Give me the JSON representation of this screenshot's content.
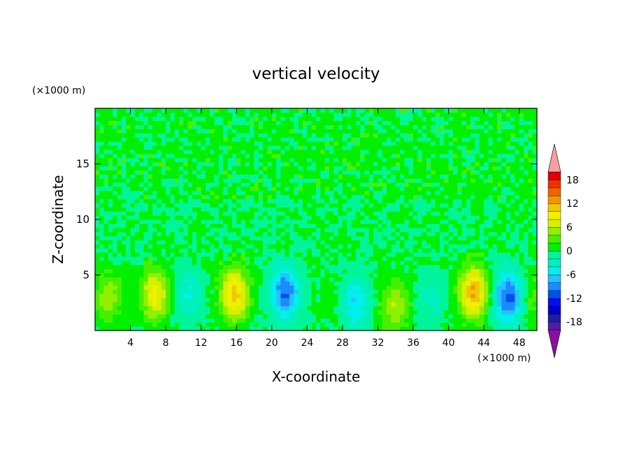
{
  "chart_data": {
    "type": "heatmap",
    "title": "vertical velocity",
    "xlabel": "X-coordinate",
    "ylabel": "Z-coordinate",
    "x_unit": "(×1000 m)",
    "y_unit": "(×1000 m)",
    "xlim": [
      0,
      50
    ],
    "ylim": [
      0,
      20
    ],
    "x_ticks": [
      4,
      8,
      12,
      16,
      20,
      24,
      28,
      32,
      36,
      40,
      44,
      48
    ],
    "y_ticks": [
      5,
      10,
      15
    ],
    "colorbar": {
      "tick_labels": [
        "18",
        "12",
        "6",
        "0",
        "-6",
        "-12",
        "-18"
      ],
      "tick_values": [
        18,
        12,
        6,
        0,
        -6,
        -12,
        -18
      ],
      "range": [
        -20,
        20
      ],
      "step": 2,
      "extend": "both",
      "colors": [
        "#8a0fa3",
        "#4f1ea8",
        "#1f1f9f",
        "#0000c8",
        "#0010f0",
        "#0050e8",
        "#1a8cff",
        "#28c0ff",
        "#00f0f0",
        "#00f0c0",
        "#00f59a",
        "#00f000",
        "#48f000",
        "#90f000",
        "#d8f000",
        "#f0f000",
        "#f0c800",
        "#f09600",
        "#f06400",
        "#f03000",
        "#e00000",
        "#f4a0a0"
      ]
    },
    "features": [
      {
        "x": 1.5,
        "z": 3.0,
        "w": 5
      },
      {
        "x": 6.8,
        "z": 3.3,
        "w": 9
      },
      {
        "x": 10.5,
        "z": 3.5,
        "w": -4
      },
      {
        "x": 15.8,
        "z": 3.3,
        "w": 11
      },
      {
        "x": 21.5,
        "z": 3.5,
        "w": -10
      },
      {
        "x": 27.0,
        "z": 2.8,
        "w": 1
      },
      {
        "x": 29.5,
        "z": 2.5,
        "w": -6
      },
      {
        "x": 34.0,
        "z": 2.2,
        "w": 6
      },
      {
        "x": 38.0,
        "z": 3.0,
        "w": -3
      },
      {
        "x": 42.8,
        "z": 3.5,
        "w": 12
      },
      {
        "x": 46.8,
        "z": 3.0,
        "w": -11
      },
      {
        "x": 49.5,
        "z": 3.0,
        "w": 3
      }
    ]
  }
}
